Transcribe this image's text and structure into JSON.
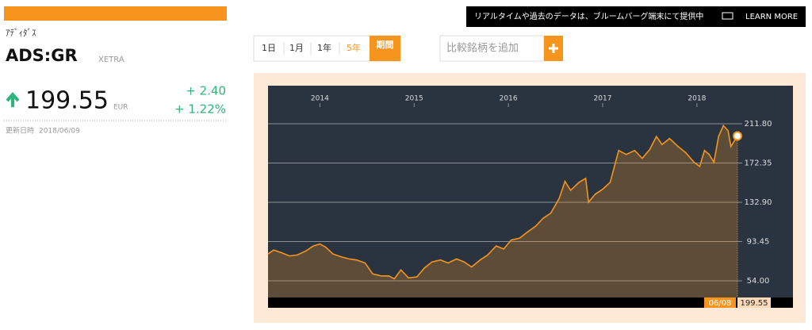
{
  "header": {
    "banner": "リアルタイムや過去のデータは、ブルームバーグ端末にて提供中",
    "learn_more": "LEARN MORE"
  },
  "quote": {
    "name_ja": "ｱﾃﾞｨﾀﾞｽ",
    "ticker": "ADS:GR",
    "exchange": "XETRA",
    "price": "199.55",
    "currency": "EUR",
    "change": "+ 2.40",
    "change_pct": "+ 1.22%",
    "updated_label": "更新日時",
    "updated": "2018/06/09"
  },
  "controls": {
    "ranges": [
      "1日",
      "1月",
      "1年",
      "5年",
      "期間"
    ],
    "compare_placeholder": "比較銘柄を追加"
  },
  "chart_data": {
    "type": "line",
    "color": "#f7941d",
    "grid": true,
    "x": [
      2013.45,
      2013.51,
      2013.6,
      2013.68,
      2013.76,
      2013.85,
      2013.93,
      2014.0,
      2014.06,
      2014.14,
      2014.23,
      2014.31,
      2014.39,
      2014.48,
      2014.56,
      2014.65,
      2014.73,
      2014.79,
      2014.86,
      2014.94,
      2015.03,
      2015.11,
      2015.19,
      2015.28,
      2015.36,
      2015.45,
      2015.53,
      2015.61,
      2015.7,
      2015.78,
      2015.87,
      2015.95,
      2016.03,
      2016.12,
      2016.2,
      2016.29,
      2016.37,
      2016.45,
      2016.54,
      2016.6,
      2016.66,
      2016.75,
      2016.82,
      2016.85,
      2016.92,
      2017.0,
      2017.08,
      2017.17,
      2017.25,
      2017.34,
      2017.42,
      2017.5,
      2017.57,
      2017.63,
      2017.71,
      2017.8,
      2017.88,
      2017.97,
      2018.03,
      2018.08,
      2018.13,
      2018.18,
      2018.23,
      2018.28,
      2018.33,
      2018.36,
      2018.43
    ],
    "values": [
      81,
      85,
      82,
      79,
      80,
      84,
      89,
      91,
      88,
      81,
      78,
      76,
      75,
      72,
      61,
      59,
      59,
      56,
      65,
      57,
      58,
      67,
      73,
      75,
      72,
      76,
      73,
      68,
      75,
      80,
      89,
      86,
      95,
      97,
      103,
      109,
      117,
      122,
      137,
      154,
      145,
      153,
      157,
      133,
      141,
      146,
      153,
      185,
      181,
      185,
      177,
      186,
      199,
      191,
      197,
      189,
      183,
      173,
      169,
      185,
      181,
      173,
      199,
      210,
      205,
      189,
      199.55
    ],
    "xlim": [
      2013.45,
      2018.43
    ],
    "xticks": [
      2014,
      2015,
      2016,
      2017,
      2018
    ],
    "ylim": [
      37.3,
      250.1
    ],
    "yticks": [
      {
        "value": 211.8,
        "label": "211.80"
      },
      {
        "value": 172.35,
        "label": "172.35"
      },
      {
        "value": 132.9,
        "label": "132.90"
      },
      {
        "value": 93.45,
        "label": "93.45"
      },
      {
        "value": 54,
        "label": "54.00"
      }
    ],
    "end_label": {
      "date": "06/08",
      "value": "199.55"
    }
  }
}
